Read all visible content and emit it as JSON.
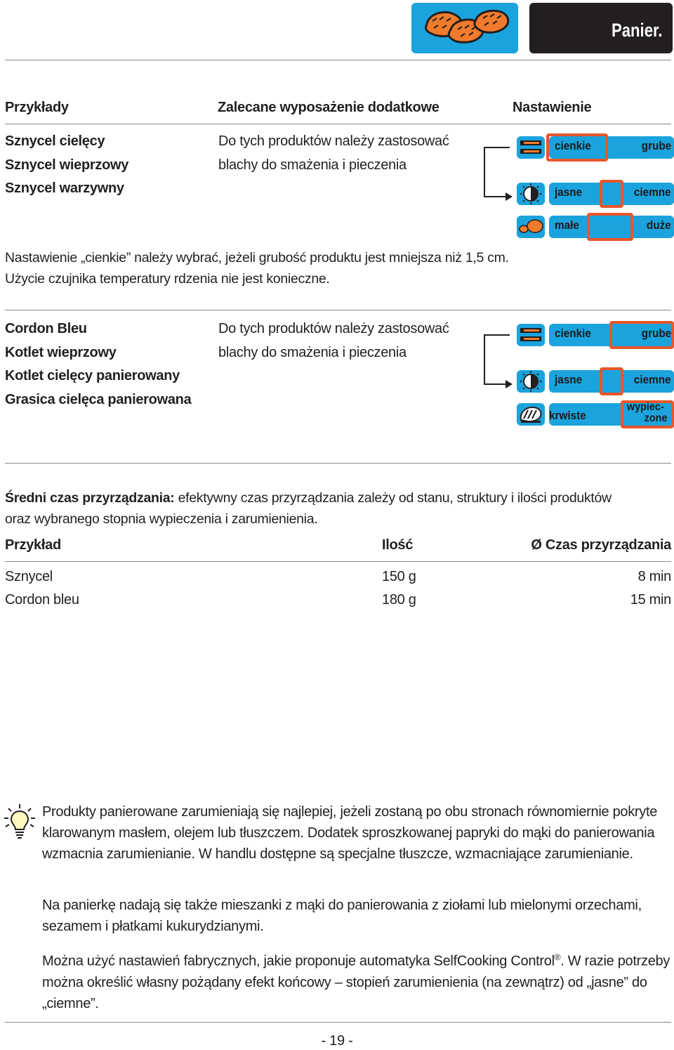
{
  "header": {
    "chapter_title": "Panier.",
    "icon": "breaded-cutlets-icon",
    "accent_color": "#1ba3dd",
    "dark_color": "#231f20",
    "highlight_color": "#e8562a"
  },
  "columns": {
    "examples": "Przykłady",
    "equipment": "Zalecane wyposażenie dodatkowe",
    "setting": "Nastawienie"
  },
  "section1": {
    "items": [
      "Sznycel cielęcy",
      "Sznycel wieprzowy",
      "Sznycel warzywny"
    ],
    "equipment": [
      "Do tych produktów należy zastosować",
      "blachy do smażenia i pieczenia"
    ],
    "panel": {
      "row1": {
        "icon": "tray-thickness-icon",
        "left": "cienkie",
        "right": "grube",
        "selected": "left"
      },
      "row2": {
        "icon": "browning-dial-icon",
        "left": "jasne",
        "right": "ciemne",
        "selected": "middle"
      },
      "row3": {
        "icon": "cutlet-size-icon",
        "left": "małe",
        "right": "duże",
        "selected": "middle"
      }
    },
    "note": [
      "Nastawienie „cienkie” należy wybrać, jeżeli grubość produktu jest mniejsza niż 1,5 cm.",
      "Użycie czujnika temperatury rdzenia nie jest konieczne."
    ]
  },
  "section2": {
    "items": [
      "Cordon Bleu",
      "Kotlet wieprzowy",
      "Kotlet cielęcy panierowany",
      "Grasica cielęca panierowana"
    ],
    "equipment": [
      "Do tych produktów należy zastosować",
      "blachy do smażenia i pieczenia"
    ],
    "panel": {
      "row1": {
        "icon": "tray-thickness-icon",
        "left": "cienkie",
        "right": "grube",
        "selected": "right"
      },
      "row2": {
        "icon": "browning-dial-icon",
        "left": "jasne",
        "right": "ciemne",
        "selected": "middle"
      },
      "row3": {
        "icon": "doneness-meat-icon",
        "left": "krwiste",
        "right_line1": "wypiec-",
        "right_line2": "zone",
        "selected": "right"
      }
    }
  },
  "cooking_time": {
    "intro_bold": "Średni czas przyrządzania:",
    "intro_line1_rest": " efektywny czas przyrządzania zależy od stanu, struktury i ilości produktów",
    "intro_line2": "oraz wybranego stopnia wypieczenia i zarumienienia.",
    "headers": [
      "Przykład",
      "Ilość",
      "Ø Czas przyrządzania"
    ],
    "rows": [
      [
        "Sznycel",
        "150 g",
        "8 min"
      ],
      [
        "Cordon bleu",
        "180 g",
        "15 min"
      ]
    ]
  },
  "tips": {
    "icon": "lightbulb-icon",
    "p1": "Produkty panierowane zarumieniają się najlepiej, jeżeli zostaną po obu stronach równomiernie pokryte klarowanym masłem, olejem lub tłuszczem. Dodatek sproszkowanej papryki do mąki do panierowania wzmacnia zarumienianie. W handlu dostępne są specjalne tłuszcze, wzmacniające zarumienianie.",
    "p2": "Na panierkę nadają się także mieszanki z mąki do panierowania z ziołami lub mielonymi orzechami, sezamem i płatkami kukurydzianymi.",
    "p3_part1": "Można użyć nastawień fabrycznych, jakie proponuje automatyka SelfCooking Control",
    "p3_reg": "®",
    "p3_part2": ". W razie potrzeby można określić własny pożądany efekt końcowy – stopień zarumienienia (na zewnątrz) od „jasne” do „ciemne”."
  },
  "footer": {
    "page_number": "- 19 -"
  }
}
